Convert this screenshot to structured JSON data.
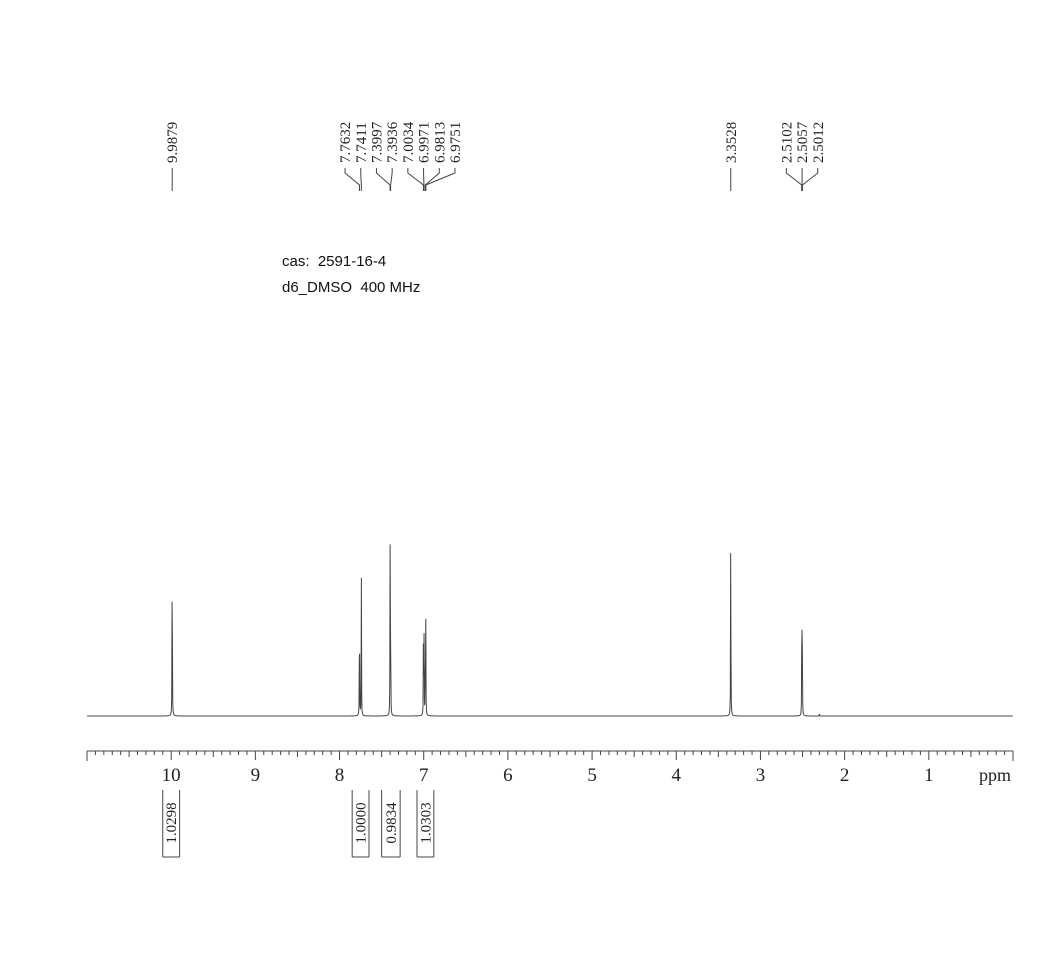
{
  "annotations": {
    "cas_line": "cas:  2591-16-4",
    "solvent_line": "d6_DMSO  400 MHz"
  },
  "chart_data": {
    "type": "line",
    "title": "",
    "xlabel": "ppm",
    "ylabel": "",
    "xlim": [
      11.0,
      0.0
    ],
    "x_reversed": true,
    "ticks": [
      "10",
      "9",
      "8",
      "7",
      "6",
      "5",
      "4",
      "3",
      "2",
      "1"
    ],
    "tick_values": [
      10,
      9,
      8,
      7,
      6,
      5,
      4,
      3,
      2,
      1
    ],
    "minor_tick_step": 0.1,
    "grid": false,
    "legend": "none",
    "line_color": "#444444",
    "peaks": [
      {
        "ppm": 9.9879,
        "height": 1.0
      },
      {
        "ppm": 7.7632,
        "height": 0.62
      },
      {
        "ppm": 7.7411,
        "height": 0.64
      },
      {
        "ppm": 7.3997,
        "height": 0.64
      },
      {
        "ppm": 7.3936,
        "height": 0.6
      },
      {
        "ppm": 7.0034,
        "height": 0.38
      },
      {
        "ppm": 6.9971,
        "height": 0.4
      },
      {
        "ppm": 6.9813,
        "height": 0.37
      },
      {
        "ppm": 6.9751,
        "height": 0.36
      },
      {
        "ppm": 3.3528,
        "height": 1.02
      },
      {
        "ppm": 2.5102,
        "height": 0.22
      },
      {
        "ppm": 2.5057,
        "height": 0.29
      },
      {
        "ppm": 2.5012,
        "height": 0.22
      },
      {
        "ppm": 2.3,
        "height": 0.015
      }
    ],
    "peak_label_groups": [
      {
        "labels": [
          "9.9879"
        ],
        "targets": [
          9.9879
        ]
      },
      {
        "labels": [
          "7.7632",
          "7.7411",
          "7.3997",
          "7.3936",
          "7.0034",
          "6.9971",
          "6.9813",
          "6.9751"
        ],
        "targets": [
          7.7632,
          7.7411,
          7.3997,
          7.3936,
          7.0034,
          6.9971,
          6.9813,
          6.9751
        ]
      },
      {
        "labels": [
          "3.3528"
        ],
        "targets": [
          3.3528
        ]
      },
      {
        "labels": [
          "2.5102",
          "2.5057",
          "2.5012"
        ],
        "targets": [
          2.5102,
          2.5057,
          2.5012
        ]
      }
    ],
    "integrals": [
      {
        "value": "1.0298",
        "from": 10.1,
        "to": 9.9
      },
      {
        "value": "1.0000",
        "from": 7.85,
        "to": 7.65
      },
      {
        "value": "0.9834",
        "from": 7.5,
        "to": 7.28
      },
      {
        "value": "1.0303",
        "from": 7.08,
        "to": 6.88
      }
    ]
  }
}
